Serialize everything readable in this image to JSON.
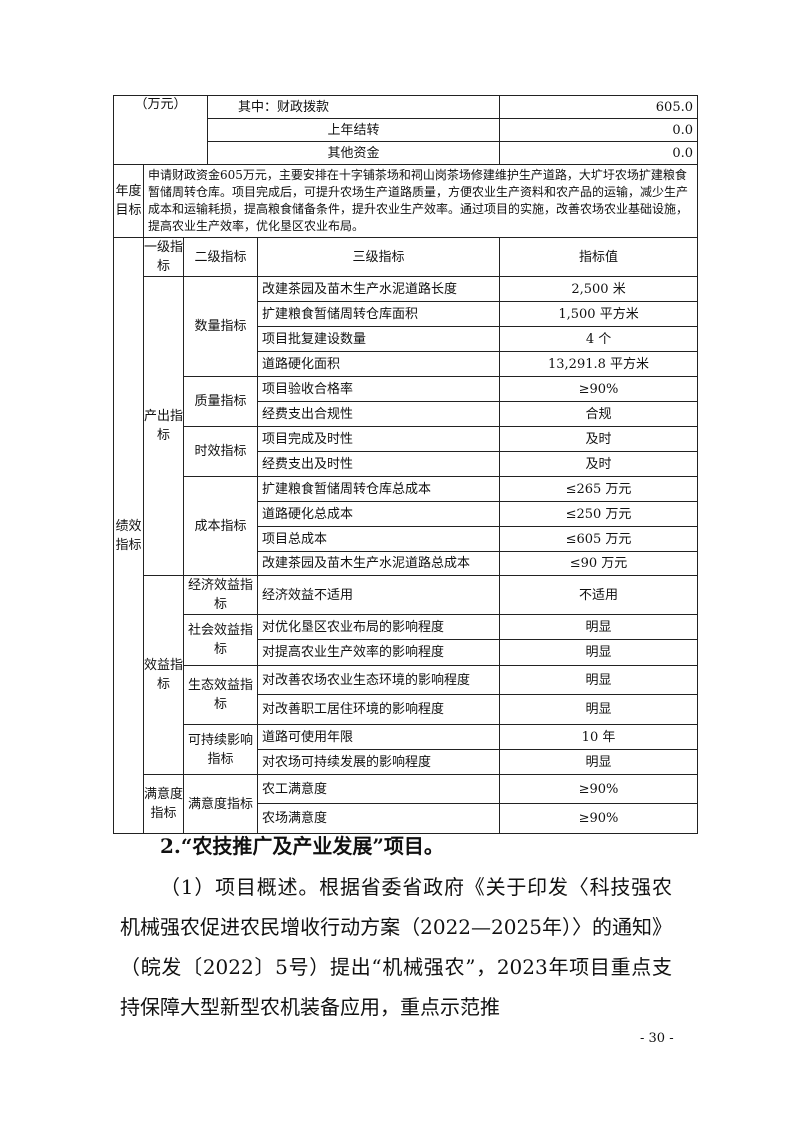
{
  "budget": {
    "unit_label": "（万元）",
    "rows": [
      {
        "label": "其中：财政拨款",
        "value": "605.0"
      },
      {
        "label": "上年结转",
        "value": "0.0"
      },
      {
        "label": "其他资金",
        "value": "0.0"
      }
    ]
  },
  "annual_goal": {
    "label": "年度目标",
    "text": "申请财政资金605万元，主要安排在十字铺茶场和祠山岗茶场修建维护生产道路，大圹圩农场扩建粮食暂储周转仓库。项目完成后，可提升农场生产道路质量，方便农业生产资料和农产品的运输，减少生产成本和运输耗损，提高粮食储备条件，提升农业生产效率。通过项目的实施，改善农场农业基础设施，提高农业生产效率，优化垦区农业布局。"
  },
  "indicators": {
    "label": "绩效指标",
    "headers": [
      "一级指标",
      "二级指标",
      "三级指标",
      "指标值"
    ],
    "groups": [
      {
        "level1": "产出指标",
        "subs": [
          {
            "level2": "数量指标",
            "items": [
              [
                "改建茶园及苗木生产水泥道路长度",
                "2,500 米"
              ],
              [
                "扩建粮食暂储周转仓库面积",
                "1,500 平方米"
              ],
              [
                "项目批复建设数量",
                "4 个"
              ],
              [
                "道路硬化面积",
                "13,291.8 平方米"
              ]
            ]
          },
          {
            "level2": "质量指标",
            "items": [
              [
                "项目验收合格率",
                "≥90%"
              ],
              [
                "经费支出合规性",
                "合规"
              ]
            ]
          },
          {
            "level2": "时效指标",
            "items": [
              [
                "项目完成及时性",
                "及时"
              ],
              [
                "经费支出及时性",
                "及时"
              ]
            ]
          },
          {
            "level2": "成本指标",
            "items": [
              [
                "扩建粮食暂储周转仓库总成本",
                "≤265 万元"
              ],
              [
                "道路硬化总成本",
                "≤250 万元"
              ],
              [
                "项目总成本",
                "≤605 万元"
              ],
              [
                "改建茶园及苗木生产水泥道路总成本",
                "≤90 万元"
              ]
            ]
          }
        ]
      },
      {
        "level1": "效益指标",
        "subs": [
          {
            "level2": "经济效益指标",
            "items": [
              [
                "经济效益不适用",
                "不适用"
              ]
            ]
          },
          {
            "level2": "社会效益指标",
            "items": [
              [
                "对优化垦区农业布局的影响程度",
                "明显"
              ],
              [
                "对提高农业生产效率的影响程度",
                "明显"
              ]
            ]
          },
          {
            "level2": "生态效益指标",
            "items": [
              [
                "对改善农场农业生态环境的影响程度",
                "明显"
              ],
              [
                "对改善职工居住环境的影响程度",
                "明显"
              ]
            ]
          },
          {
            "level2": "可持续影响指标",
            "items": [
              [
                "道路可使用年限",
                "10 年"
              ],
              [
                "对农场可持续发展的影响程度",
                "明显"
              ]
            ]
          }
        ]
      },
      {
        "level1": "满意度指标",
        "subs": [
          {
            "level2": "满意度指标",
            "items": [
              [
                "农工满意度",
                "≥90%"
              ],
              [
                "农场满意度",
                "≥90%"
              ]
            ]
          }
        ]
      }
    ]
  },
  "heading": "2.“农技推广及产业发展”项目。",
  "paragraph": "（1）项目概述。根据省委省政府《关于印发〈科技强农机械强农促进农民增收行动方案（2022—2025年）〉的通知》（皖发〔2022〕5号）提出“机械强农”，2023年项目重点支持保障大型新型农机装备应用，重点示范推",
  "page_number": "- 30 -"
}
